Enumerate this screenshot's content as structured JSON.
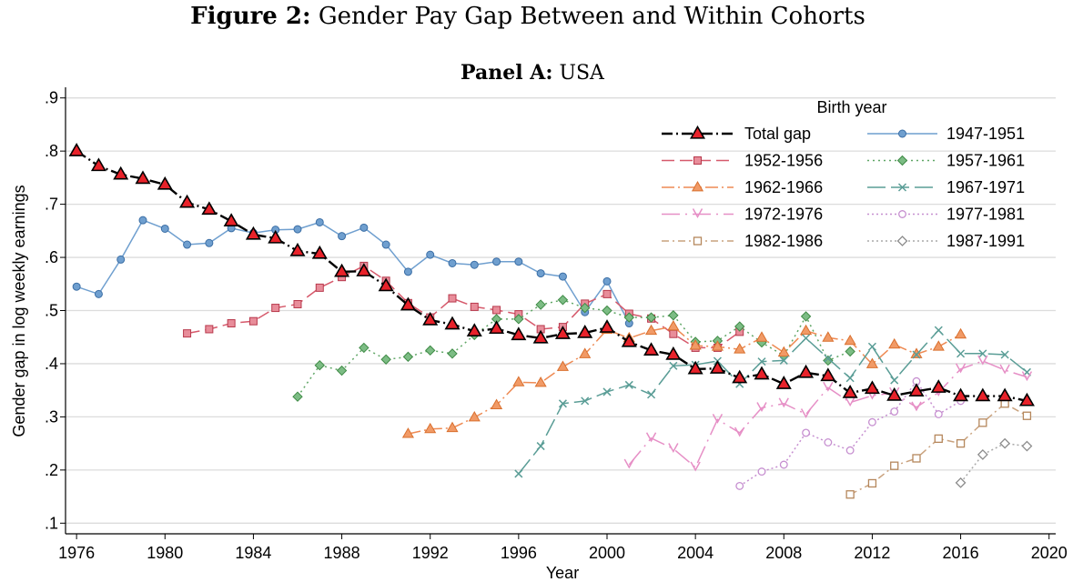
{
  "figure": {
    "title_bold": "Figure 2:",
    "title_rest": " Gender Pay Gap Between and Within Cohorts",
    "panel_bold": "Panel A:",
    "panel_rest": " USA"
  },
  "chart_data": {
    "type": "line",
    "xlabel": "Year",
    "ylabel": "Gender gap in log weekly earnings",
    "xlim": [
      1975.5,
      2020.3
    ],
    "ylim": [
      0.08,
      0.92
    ],
    "x_ticks": [
      1976,
      1980,
      1984,
      1988,
      1992,
      1996,
      2000,
      2004,
      2008,
      2012,
      2016,
      2020
    ],
    "y_ticks": [
      {
        "value": 0.1,
        "label": ".1"
      },
      {
        "value": 0.2,
        "label": ".2"
      },
      {
        "value": 0.3,
        "label": ".3"
      },
      {
        "value": 0.4,
        "label": ".4"
      },
      {
        "value": 0.5,
        "label": ".5"
      },
      {
        "value": 0.6,
        "label": ".6"
      },
      {
        "value": 0.7,
        "label": ".7"
      },
      {
        "value": 0.8,
        "label": ".8"
      },
      {
        "value": 0.9,
        "label": ".9"
      }
    ],
    "grid": true,
    "legend_title": "Birth year",
    "legend_position": "top-right",
    "series": [
      {
        "name": "Total gap",
        "color": "#000000",
        "dash": "12,4,2,4",
        "marker": "triangle",
        "marker_fill": "#e8222a",
        "marker_stroke": "#000000",
        "x": [
          1976,
          1977,
          1978,
          1979,
          1980,
          1981,
          1982,
          1983,
          1984,
          1985,
          1986,
          1987,
          1988,
          1989,
          1990,
          1991,
          1992,
          1993,
          1994,
          1995,
          1996,
          1997,
          1998,
          1999,
          2000,
          2001,
          2002,
          2003,
          2004,
          2005,
          2006,
          2007,
          2008,
          2009,
          2010,
          2011,
          2012,
          2013,
          2014,
          2015,
          2016,
          2017,
          2018,
          2019
        ],
        "values": [
          0.8,
          0.772,
          0.756,
          0.748,
          0.737,
          0.703,
          0.69,
          0.668,
          0.643,
          0.636,
          0.612,
          0.607,
          0.573,
          0.574,
          0.546,
          0.51,
          0.482,
          0.474,
          0.461,
          0.466,
          0.454,
          0.448,
          0.456,
          0.458,
          0.468,
          0.441,
          0.425,
          0.417,
          0.39,
          0.391,
          0.373,
          0.38,
          0.362,
          0.383,
          0.377,
          0.345,
          0.353,
          0.34,
          0.348,
          0.355,
          0.339,
          0.339,
          0.339,
          0.33
        ]
      },
      {
        "name": "1947-1951",
        "color": "#6f9fcf",
        "dash": "",
        "marker": "circle",
        "marker_fill": "#6f9fcf",
        "marker_stroke": "#3b6ea5",
        "x": [
          1976,
          1977,
          1978,
          1979,
          1980,
          1981,
          1982,
          1983,
          1984,
          1985,
          1986,
          1987,
          1988,
          1989,
          1990,
          1991,
          1992,
          1993,
          1994,
          1995,
          1996,
          1997,
          1998,
          1999,
          2000,
          2001
        ],
        "values": [
          0.545,
          0.531,
          0.596,
          0.67,
          0.654,
          0.624,
          0.627,
          0.655,
          0.646,
          0.652,
          0.653,
          0.666,
          0.64,
          0.656,
          0.624,
          0.573,
          0.605,
          0.589,
          0.586,
          0.592,
          0.592,
          0.57,
          0.564,
          0.497,
          0.555,
          0.476
        ]
      },
      {
        "name": "1952-1956",
        "color": "#d6596b",
        "dash": "14,6",
        "marker": "square",
        "marker_fill": "#e88d9a",
        "marker_stroke": "#b8394c",
        "x": [
          1981,
          1982,
          1983,
          1984,
          1985,
          1986,
          1987,
          1988,
          1989,
          1990,
          1991,
          1992,
          1993,
          1994,
          1995,
          1996,
          1997,
          1998,
          1999,
          2000,
          2001,
          2002,
          2003,
          2004,
          2005,
          2006
        ],
        "values": [
          0.457,
          0.465,
          0.476,
          0.48,
          0.505,
          0.512,
          0.543,
          0.563,
          0.584,
          0.556,
          0.514,
          0.487,
          0.523,
          0.507,
          0.501,
          0.493,
          0.465,
          0.469,
          0.513,
          0.531,
          0.494,
          0.485,
          0.456,
          0.43,
          0.43,
          0.46
        ]
      },
      {
        "name": "1957-1961",
        "color": "#5fa665",
        "dash": "2,4",
        "marker": "diamond",
        "marker_fill": "#7cbc84",
        "marker_stroke": "#3e8a45",
        "x": [
          1986,
          1987,
          1988,
          1989,
          1990,
          1991,
          1992,
          1993,
          1994,
          1995,
          1996,
          1997,
          1998,
          1999,
          2000,
          2001,
          2002,
          2003,
          2004,
          2005,
          2006,
          2007,
          2008,
          2009,
          2010,
          2011
        ],
        "values": [
          0.338,
          0.397,
          0.387,
          0.43,
          0.408,
          0.413,
          0.425,
          0.419,
          0.454,
          0.484,
          0.484,
          0.511,
          0.52,
          0.505,
          0.5,
          0.487,
          0.487,
          0.491,
          0.441,
          0.443,
          0.47,
          0.44,
          0.415,
          0.489,
          0.406,
          0.423
        ]
      },
      {
        "name": "1962-1966",
        "color": "#ee8a53",
        "dash": "14,4,2,4",
        "marker": "triangle",
        "marker_fill": "#f19a66",
        "marker_stroke": "#d9702f",
        "x": [
          1991,
          1992,
          1993,
          1994,
          1995,
          1996,
          1997,
          1998,
          1999,
          2000,
          2001,
          2002,
          2003,
          2004,
          2005,
          2006,
          2007,
          2008,
          2009,
          2010,
          2011,
          2012,
          2013,
          2014,
          2015,
          2016
        ],
        "values": [
          0.268,
          0.277,
          0.279,
          0.299,
          0.322,
          0.365,
          0.364,
          0.394,
          0.418,
          0.464,
          0.448,
          0.462,
          0.47,
          0.434,
          0.432,
          0.427,
          0.449,
          0.421,
          0.462,
          0.449,
          0.443,
          0.399,
          0.436,
          0.418,
          0.432,
          0.455
        ]
      },
      {
        "name": "1967-1971",
        "color": "#5a9d96",
        "dash": "20,6",
        "marker": "x",
        "marker_fill": "#5a9d96",
        "marker_stroke": "#5a9d96",
        "x": [
          1996,
          1997,
          1998,
          1999,
          2000,
          2001,
          2002,
          2003,
          2004,
          2005,
          2006,
          2007,
          2008,
          2009,
          2010,
          2011,
          2012,
          2013,
          2014,
          2015,
          2016,
          2017,
          2018,
          2019
        ],
        "values": [
          0.193,
          0.245,
          0.325,
          0.33,
          0.347,
          0.36,
          0.342,
          0.396,
          0.398,
          0.405,
          0.362,
          0.404,
          0.406,
          0.448,
          0.41,
          0.373,
          0.432,
          0.369,
          0.417,
          0.463,
          0.419,
          0.419,
          0.417,
          0.384
        ]
      },
      {
        "name": "1972-1976",
        "color": "#e68fc6",
        "dash": "20,6,2,6",
        "marker": "v",
        "marker_fill": "#e68fc6",
        "marker_stroke": "#e68fc6",
        "x": [
          2001,
          2002,
          2003,
          2004,
          2005,
          2006,
          2007,
          2008,
          2009,
          2010,
          2011,
          2012,
          2013,
          2014,
          2015,
          2016,
          2017,
          2018,
          2019
        ],
        "values": [
          0.21,
          0.26,
          0.24,
          0.205,
          0.295,
          0.27,
          0.317,
          0.325,
          0.305,
          0.355,
          0.327,
          0.34,
          0.345,
          0.318,
          0.346,
          0.39,
          0.405,
          0.388,
          0.375
        ]
      },
      {
        "name": "1977-1981",
        "color": "#c68fd0",
        "dash": "2,3",
        "marker": "circle-open",
        "marker_fill": "#ffffff",
        "marker_stroke": "#c68fd0",
        "x": [
          2006,
          2007,
          2008,
          2009,
          2010,
          2011,
          2012,
          2013,
          2014,
          2015,
          2016
        ],
        "values": [
          0.17,
          0.197,
          0.21,
          0.27,
          0.252,
          0.237,
          0.29,
          0.31,
          0.367,
          0.305,
          0.33
        ]
      },
      {
        "name": "1982-1986",
        "color": "#c9a27e",
        "dash": "8,4,2,4",
        "marker": "square-open",
        "marker_fill": "#ffffff",
        "marker_stroke": "#b5875c",
        "x": [
          2011,
          2012,
          2013,
          2014,
          2015,
          2016,
          2017,
          2018,
          2019
        ],
        "values": [
          0.154,
          0.175,
          0.208,
          0.222,
          0.259,
          0.25,
          0.289,
          0.325,
          0.302
        ]
      },
      {
        "name": "1987-1991",
        "color": "#a8a8a8",
        "dash": "2,3",
        "marker": "diamond-open",
        "marker_fill": "#ffffff",
        "marker_stroke": "#8c8c8c",
        "x": [
          2016,
          2017,
          2018,
          2019
        ],
        "values": [
          0.176,
          0.229,
          0.25,
          0.245
        ]
      }
    ]
  }
}
